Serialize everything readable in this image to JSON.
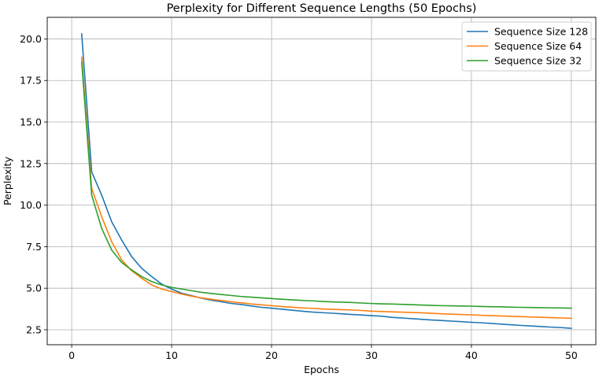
{
  "chart_data": {
    "type": "line",
    "title": "Perplexity for Different Sequence Lengths (50 Epochs)",
    "xlabel": "Epochs",
    "ylabel": "Perplexity",
    "xlim": [
      -2.45,
      52.45
    ],
    "ylim": [
      1.6,
      21.3
    ],
    "xticks": [
      0,
      10,
      20,
      30,
      40,
      50
    ],
    "xtick_labels": [
      "0",
      "10",
      "20",
      "30",
      "40",
      "50"
    ],
    "yticks": [
      2.5,
      5.0,
      7.5,
      10.0,
      12.5,
      15.0,
      17.5,
      20.0
    ],
    "ytick_labels": [
      "2.5",
      "5.0",
      "7.5",
      "10.0",
      "12.5",
      "15.0",
      "17.5",
      "20.0"
    ],
    "grid": true,
    "legend_position": "top-right",
    "x": [
      1,
      2,
      3,
      4,
      5,
      6,
      7,
      8,
      9,
      10,
      11,
      12,
      13,
      14,
      15,
      16,
      17,
      18,
      19,
      20,
      21,
      22,
      23,
      24,
      25,
      26,
      27,
      28,
      29,
      30,
      31,
      32,
      33,
      34,
      35,
      36,
      37,
      38,
      39,
      40,
      41,
      42,
      43,
      44,
      45,
      46,
      47,
      48,
      49,
      50
    ],
    "series": [
      {
        "name": "Sequence Size 128",
        "color": "#1f77b4",
        "values": [
          20.3,
          12.0,
          10.6,
          9.0,
          7.9,
          6.9,
          6.2,
          5.7,
          5.25,
          4.95,
          4.7,
          4.55,
          4.4,
          4.28,
          4.18,
          4.08,
          4.02,
          3.93,
          3.85,
          3.8,
          3.74,
          3.68,
          3.62,
          3.57,
          3.53,
          3.5,
          3.46,
          3.42,
          3.39,
          3.35,
          3.32,
          3.25,
          3.21,
          3.17,
          3.13,
          3.09,
          3.06,
          3.02,
          2.99,
          2.95,
          2.92,
          2.88,
          2.84,
          2.8,
          2.76,
          2.73,
          2.69,
          2.66,
          2.63,
          2.59
        ]
      },
      {
        "name": "Sequence Size 64",
        "color": "#ff7f0e",
        "values": [
          18.9,
          11.0,
          9.3,
          7.8,
          6.7,
          6.05,
          5.6,
          5.2,
          4.95,
          4.8,
          4.65,
          4.52,
          4.42,
          4.33,
          4.26,
          4.18,
          4.12,
          4.05,
          4.0,
          3.95,
          3.9,
          3.86,
          3.82,
          3.79,
          3.76,
          3.73,
          3.71,
          3.69,
          3.66,
          3.62,
          3.6,
          3.58,
          3.56,
          3.54,
          3.52,
          3.49,
          3.46,
          3.44,
          3.42,
          3.4,
          3.37,
          3.35,
          3.33,
          3.31,
          3.29,
          3.27,
          3.25,
          3.23,
          3.21,
          3.19
        ]
      },
      {
        "name": "Sequence Size 32",
        "color": "#2ca02c",
        "values": [
          18.6,
          10.6,
          8.6,
          7.3,
          6.55,
          6.1,
          5.7,
          5.4,
          5.2,
          5.05,
          4.95,
          4.85,
          4.75,
          4.68,
          4.62,
          4.56,
          4.5,
          4.46,
          4.42,
          4.38,
          4.34,
          4.3,
          4.27,
          4.24,
          4.21,
          4.18,
          4.16,
          4.14,
          4.11,
          4.08,
          4.06,
          4.05,
          4.03,
          4.01,
          3.99,
          3.97,
          3.95,
          3.94,
          3.93,
          3.92,
          3.9,
          3.89,
          3.88,
          3.86,
          3.85,
          3.84,
          3.83,
          3.82,
          3.81,
          3.8
        ]
      }
    ]
  }
}
